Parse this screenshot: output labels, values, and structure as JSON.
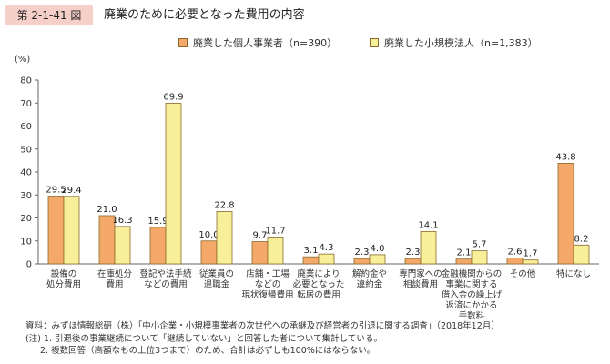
{
  "header": {
    "badge": "第 2-1-41 図",
    "title": "廃業のために必要となった費用の内容"
  },
  "colors": {
    "badge_bg": "#f6cfc9",
    "series1": "#f4a96a",
    "series2": "#f7ef9a",
    "bar_outline": "#8a6a2a",
    "axis": "#666666",
    "grid": "#d8d8d8"
  },
  "chart_data": {
    "type": "bar",
    "ylabel": "(%)",
    "ylim": [
      0,
      80
    ],
    "yticks": [
      0,
      10,
      20,
      30,
      40,
      50,
      60,
      70,
      80
    ],
    "categories": [
      [
        "設備の",
        "処分費用"
      ],
      [
        "在庫処分",
        "費用"
      ],
      [
        "登記や法手続",
        "などの費用"
      ],
      [
        "従業員の",
        "退職金"
      ],
      [
        "店舗・工場",
        "などの",
        "現状復帰費用"
      ],
      [
        "廃業により",
        "必要となった",
        "転居の費用"
      ],
      [
        "解約金や",
        "違約金"
      ],
      [
        "専門家への",
        "相談費用"
      ],
      [
        "金融機関からの",
        "事業に関する",
        "借入金の繰上げ",
        "返済にかかる",
        "手数料"
      ],
      [
        "その他"
      ],
      [
        "特になし"
      ]
    ],
    "series": [
      {
        "name": "廃業した個人事業者（n=390）",
        "values": [
          29.5,
          21.0,
          15.9,
          10.0,
          9.7,
          3.1,
          2.3,
          2.3,
          2.1,
          2.6,
          43.8
        ]
      },
      {
        "name": "廃業した小規模法人（n=1,383）",
        "values": [
          29.4,
          16.3,
          69.9,
          22.8,
          11.7,
          4.3,
          4.0,
          14.1,
          5.7,
          1.7,
          8.2
        ]
      }
    ],
    "data_labels": [
      [
        "29.5",
        "21.0",
        "15.9",
        "10.0",
        "9.7",
        "3.1",
        "2.3",
        "2.3",
        "2.1",
        "2.6",
        "43.8"
      ],
      [
        "29.4",
        "16.3",
        "69.9",
        "22.8",
        "11.7",
        "4.3",
        "4.0",
        "14.1",
        "5.7",
        "1.7",
        "8.2"
      ]
    ],
    "grid": false,
    "legend_position": "top"
  },
  "footnotes": {
    "source": "資料：みずほ情報総研（株）「中小企業・小規模事業者の次世代への承継及び経営者の引退に関する調査」（2018年12月）",
    "note1": "(注) 1. 引退後の事業継続について「継続していない」と回答した者について集計している。",
    "note2": "2. 複数回答（高額なもの上位3つまで）のため、合計は必ずしも100%にはならない。"
  }
}
